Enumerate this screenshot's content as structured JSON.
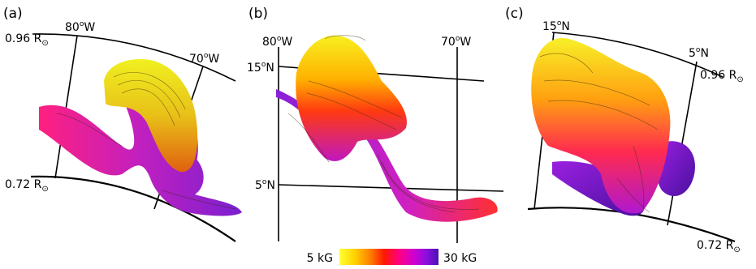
{
  "panels": [
    {
      "letter": "(a)",
      "lon_left": "80",
      "lon_right": "70",
      "lon_suffix": "W",
      "radius_top": "0.96 R",
      "radius_bottom": "0.72 R"
    },
    {
      "letter": "(b)",
      "lon_left": "80",
      "lon_right": "70",
      "lon_suffix": "W",
      "lat_top": "15",
      "lat_bottom": "5",
      "lat_suffix": "N"
    },
    {
      "letter": "(c)",
      "lat_left": "15",
      "lat_right": "5",
      "lat_suffix": "N",
      "radius_top": "0.96 R",
      "radius_bottom": "0.72 R"
    }
  ],
  "degree_symbol": "o",
  "sun_symbol": "⊙",
  "colorbar": {
    "min_label": "5 kG",
    "max_label": "30 kG",
    "colors": [
      "#ffff33",
      "#ffd400",
      "#ff7a00",
      "#ff1a00",
      "#ff0080",
      "#d000d0",
      "#8a10e0",
      "#4a10b0"
    ]
  }
}
